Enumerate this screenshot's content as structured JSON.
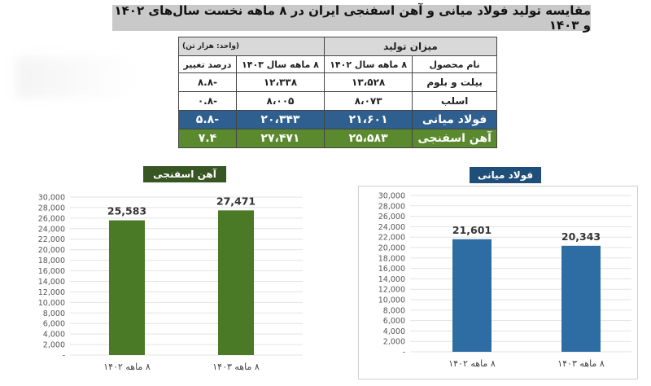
{
  "title": "مقایسه تولید فولاد میانی و آهن اسفنجی ایران در ۸ ماهه نخست سال‌های ۱۴۰۲ و ۱۴۰۳",
  "table": {
    "group_header": "میزان تولید",
    "unit_note": "(واحد: هزار تن)",
    "columns": [
      "نام محصول",
      "۸ ماهه سال ۱۴۰۲",
      "۸ ماهه سال ۱۴۰۳",
      "درصد تغییر"
    ],
    "rows": [
      {
        "product": "بیلت و بلوم",
        "y1402": "۱۳،۵۲۸",
        "y1403": "۱۲،۳۳۸",
        "change": "-۸.۸"
      },
      {
        "product": "اسلب",
        "y1402": "۸،۰۷۳",
        "y1403": "۸،۰۰۵",
        "change": "-۰.۸"
      },
      {
        "product": "فولاد میانی",
        "y1402": "۲۱،۶۰۱",
        "y1403": "۲۰،۳۴۳",
        "change": "-۵.۸"
      },
      {
        "product": "آهن اسفنجی",
        "y1402": "۲۵،۵۸۳",
        "y1403": "۲۷،۴۷۱",
        "change": "۷.۴"
      }
    ]
  },
  "colors": {
    "green": "#4a7a26",
    "blue": "#2e6da4",
    "blue_label": "#1f4e79",
    "green_label": "#375623"
  },
  "chart_data": [
    {
      "type": "bar",
      "title": "آهن اسفنجی",
      "categories": [
        "۸ ماهه ۱۴۰۲",
        "۸ ماهه ۱۴۰۳"
      ],
      "values": [
        25583,
        27471
      ],
      "value_labels": [
        "25,583",
        "27,471"
      ],
      "ylim": [
        0,
        30000
      ],
      "yticks": [
        "-",
        "2,000",
        "4,000",
        "6,000",
        "8,000",
        "10,000",
        "12,000",
        "14,000",
        "16,000",
        "18,000",
        "20,000",
        "22,000",
        "24,000",
        "26,000",
        "28,000",
        "30,000"
      ],
      "grid": true
    },
    {
      "type": "bar",
      "title": "فولاد میانی",
      "categories": [
        "۸ ماهه ۱۴۰۲",
        "۸ ماهه ۱۴۰۳"
      ],
      "values": [
        21601,
        20343
      ],
      "value_labels": [
        "21,601",
        "20,343"
      ],
      "ylim": [
        0,
        30000
      ],
      "yticks": [
        "-",
        "2,000",
        "4,000",
        "6,000",
        "8,000",
        "10,000",
        "12,000",
        "14,000",
        "16,000",
        "18,000",
        "20,000",
        "22,000",
        "24,000",
        "26,000",
        "28,000",
        "30,000"
      ],
      "grid": true
    }
  ]
}
